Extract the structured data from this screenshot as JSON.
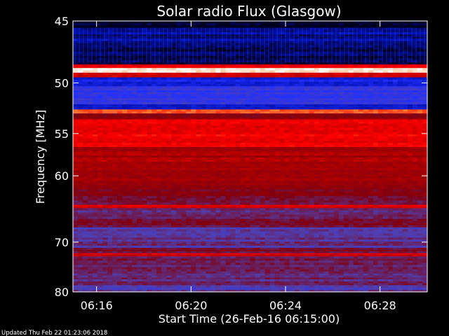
{
  "footer": {
    "updated_text": "Updated Thu Feb 22 01:23:06 2018"
  },
  "chart_data": {
    "type": "heatmap",
    "title": "Solar radio Flux (Glasgow)",
    "xlabel": "Start Time (26-Feb-16 06:15:00)",
    "ylabel": "Frequency [MHz]",
    "x_ticks": [
      {
        "label": "06:16",
        "minutes_after_start": 1
      },
      {
        "label": "06:20",
        "minutes_after_start": 5
      },
      {
        "label": "06:24",
        "minutes_after_start": 9
      },
      {
        "label": "06:28",
        "minutes_after_start": 13
      }
    ],
    "xlim_minutes_after_start": [
      0,
      15
    ],
    "y_ticks": [
      45,
      50,
      55,
      60,
      70,
      80
    ],
    "ylim": [
      45,
      80
    ],
    "y_scale": "reciprocal",
    "colormap": [
      "#000020",
      "#0010b0",
      "#2030ff",
      "#5040b0",
      "#800010",
      "#b00000",
      "#ff0000",
      "#ff9040",
      "#ffffff"
    ],
    "frequency_bands": [
      {
        "from": 45.0,
        "to": 45.5,
        "level": 0.0
      },
      {
        "from": 45.5,
        "to": 46.5,
        "level": 0.1
      },
      {
        "from": 46.5,
        "to": 48.4,
        "level": 0.05
      },
      {
        "from": 48.4,
        "to": 48.7,
        "level": 0.75
      },
      {
        "from": 48.7,
        "to": 49.1,
        "level": 1.0
      },
      {
        "from": 49.1,
        "to": 49.5,
        "level": 0.7
      },
      {
        "from": 49.5,
        "to": 50.3,
        "level": 0.2
      },
      {
        "from": 50.3,
        "to": 52.0,
        "level": 0.3
      },
      {
        "from": 52.0,
        "to": 52.5,
        "level": 0.2
      },
      {
        "from": 52.5,
        "to": 52.9,
        "level": 0.85
      },
      {
        "from": 52.9,
        "to": 53.5,
        "level": 0.55
      },
      {
        "from": 53.5,
        "to": 56.5,
        "level": 0.72
      },
      {
        "from": 56.5,
        "to": 58.5,
        "level": 0.6
      },
      {
        "from": 58.5,
        "to": 61.5,
        "level": 0.58
      },
      {
        "from": 61.5,
        "to": 64.0,
        "level": 0.5
      },
      {
        "from": 64.0,
        "to": 64.5,
        "level": 0.68
      },
      {
        "from": 64.5,
        "to": 67.5,
        "level": 0.45
      },
      {
        "from": 67.5,
        "to": 71.0,
        "level": 0.4
      },
      {
        "from": 71.0,
        "to": 72.0,
        "level": 0.47
      },
      {
        "from": 72.0,
        "to": 72.6,
        "level": 0.68
      },
      {
        "from": 72.6,
        "to": 76.0,
        "level": 0.45
      },
      {
        "from": 76.0,
        "to": 78.5,
        "level": 0.42
      },
      {
        "from": 78.5,
        "to": 80.0,
        "level": 0.38
      }
    ]
  }
}
